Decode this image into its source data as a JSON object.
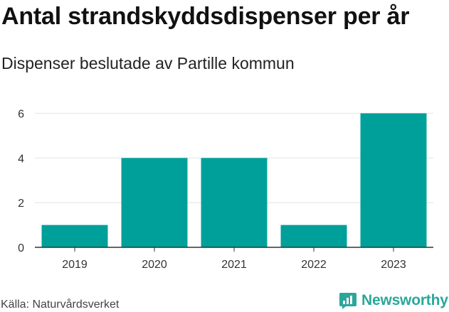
{
  "header": {
    "title": "Antal strandskyddsdispenser per år",
    "subtitle": "Dispenser beslutade av Partille kommun"
  },
  "footer": {
    "source": "Källa: Naturvårdsverket",
    "brand": "Newsworthy",
    "brand_icon": "newsworthy-logo-icon"
  },
  "colors": {
    "bar": "#00a09a",
    "grid": "#e3e3e3",
    "axis": "#333333",
    "brand": "#2aa79b"
  },
  "chart_data": {
    "type": "bar",
    "title": "Antal strandskyddsdispenser per år",
    "subtitle": "Dispenser beslutade av Partille kommun",
    "categories": [
      "2019",
      "2020",
      "2021",
      "2022",
      "2023"
    ],
    "values": [
      1,
      4,
      4,
      1,
      6
    ],
    "xlabel": "",
    "ylabel": "",
    "ylim": [
      0,
      6.3
    ],
    "yticks": [
      0,
      2,
      4,
      6
    ],
    "grid": true,
    "legend": "none"
  }
}
